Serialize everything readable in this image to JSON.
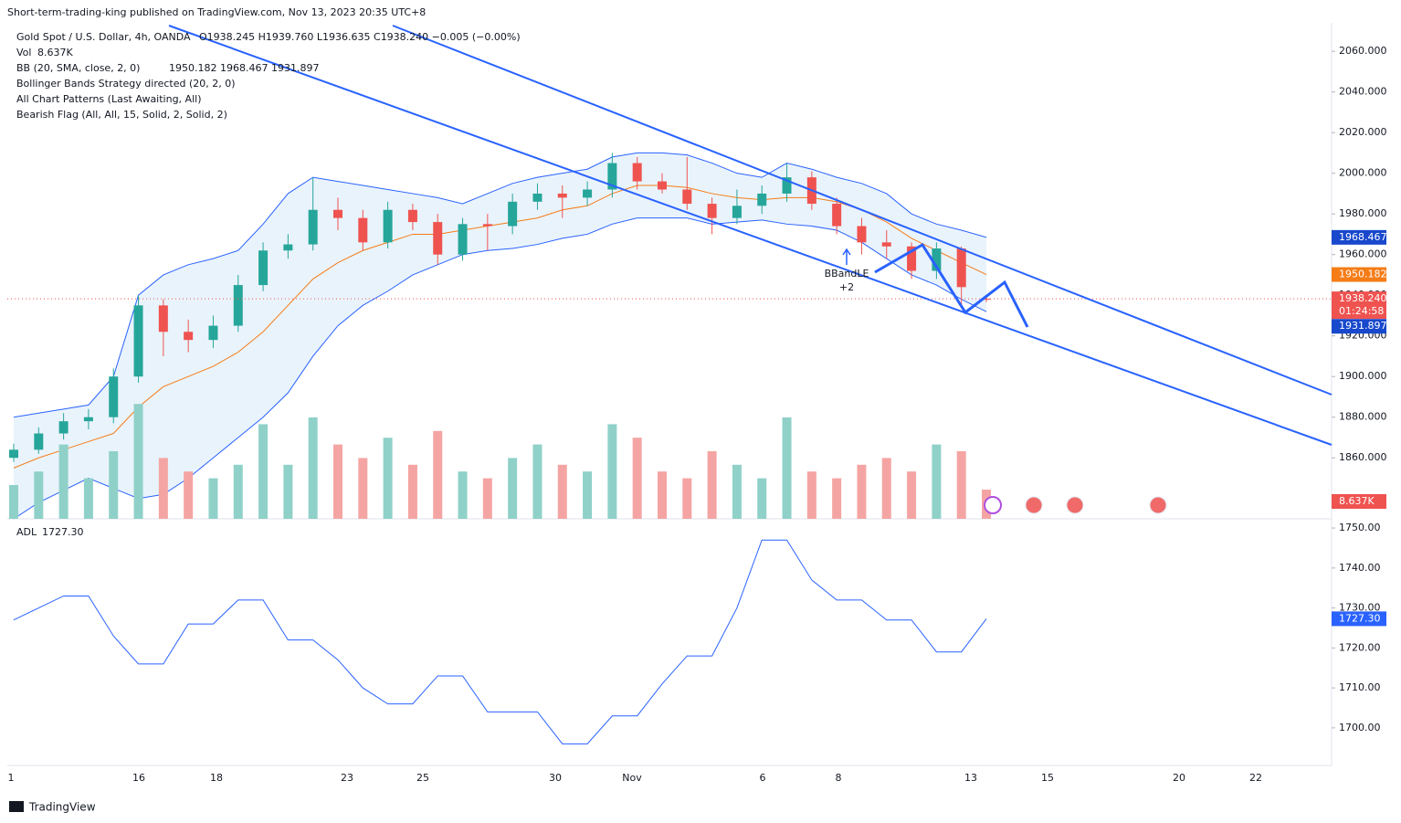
{
  "header": {
    "published": "Short-term-trading-king published on TradingView.com, Nov 13, 2023 20:35 UTC+8",
    "symbol": "Gold Spot / U.S. Dollar, 4h, OANDA",
    "ohlc": "O1938.245 H1939.760 L1936.635 C1938.240 −0.005 (−0.00%)",
    "indicators": [
      "Bollinger Bands Strategy directed (20, 2, 0)",
      "All Chart Patterns (Last Awaiting, All)",
      "Bearish Flag (All, All, 15, Solid, 2, Solid, 2)"
    ],
    "annotations": [
      "BBandLE",
      "+2"
    ],
    "footer": "TradingView"
  },
  "chart_data": [
    {
      "type": "candlestick",
      "open": [
        1860,
        1864,
        1872,
        1878,
        1880,
        1900,
        1935,
        1922,
        1918,
        1925,
        1945,
        1962,
        1965,
        1982,
        1978,
        1966,
        1982,
        1976,
        1960,
        1975,
        1974,
        1986,
        1990,
        1988,
        1992,
        2005,
        1996,
        1992,
        1985,
        1978,
        1984,
        1990,
        1998,
        1985,
        1974,
        1966,
        1964,
        1952,
        1963,
        1938.245
      ],
      "high": [
        1867,
        1875,
        1882,
        1884,
        1904,
        1940,
        1938,
        1928,
        1930,
        1950,
        1966,
        1970,
        1998,
        1988,
        1982,
        1986,
        1985,
        1980,
        1978,
        1980,
        1990,
        1995,
        1994,
        1996,
        2010,
        2008,
        2000,
        2008,
        1988,
        1992,
        1994,
        2005,
        2001,
        1988,
        1978,
        1972,
        1966,
        1966,
        1964,
        1939.76
      ],
      "low": [
        1858,
        1862,
        1869,
        1874,
        1877,
        1897,
        1910,
        1912,
        1914,
        1922,
        1942,
        1958,
        1962,
        1972,
        1962,
        1963,
        1972,
        1955,
        1957,
        1962,
        1970,
        1982,
        1978,
        1984,
        1988,
        1992,
        1990,
        1982,
        1970,
        1975,
        1980,
        1986,
        1982,
        1970,
        1960,
        1958,
        1948,
        1948,
        1935,
        1936.635
      ],
      "close": [
        1864,
        1872,
        1878,
        1880,
        1900,
        1935,
        1922,
        1918,
        1925,
        1945,
        1962,
        1965,
        1982,
        1978,
        1966,
        1982,
        1976,
        1960,
        1975,
        1974,
        1986,
        1990,
        1988,
        1992,
        2005,
        1996,
        1992,
        1985,
        1978,
        1984,
        1990,
        1998,
        1985,
        1974,
        1966,
        1964,
        1952,
        1963,
        1944,
        1938.24
      ],
      "last_price_label": "1938.240",
      "countdown": "01:24:58",
      "up_color": "#26a69a",
      "down_color": "#ef5350",
      "ylim": [
        1830,
        2074
      ],
      "yticks": [
        {
          "value": 1860,
          "label": "1860.000"
        },
        {
          "value": 1880,
          "label": "1880.000"
        },
        {
          "value": 1900,
          "label": "1900.000"
        },
        {
          "value": 1920,
          "label": "1920.000"
        },
        {
          "value": 1940,
          "label": "1940.000"
        },
        {
          "value": 1960,
          "label": "1960.000"
        },
        {
          "value": 1980,
          "label": "1980.000"
        },
        {
          "value": 2000,
          "label": "2000.000"
        },
        {
          "value": 2020,
          "label": "2020.000"
        },
        {
          "value": 2040,
          "label": "2040.000"
        },
        {
          "value": 2060,
          "label": "2060.000"
        }
      ],
      "bands": {
        "name": "BB (20, SMA, close, 2, 0)",
        "basis_color": "#f57c17",
        "band_color": "#2962ff",
        "fill": "#e3f0fb",
        "basis": [
          1855,
          1860,
          1864,
          1868,
          1872,
          1885,
          1895,
          1900,
          1905,
          1912,
          1922,
          1935,
          1948,
          1956,
          1962,
          1966,
          1970,
          1970,
          1972,
          1974,
          1976,
          1978,
          1982,
          1984,
          1990,
          1994,
          1994,
          1993,
          1990,
          1988,
          1987,
          1988,
          1988,
          1986,
          1982,
          1976,
          1968,
          1962,
          1956,
          1950.182
        ],
        "upper": [
          1880,
          1882,
          1884,
          1886,
          1900,
          1940,
          1950,
          1955,
          1958,
          1962,
          1975,
          1990,
          1998,
          1996,
          1994,
          1992,
          1990,
          1988,
          1985,
          1990,
          1995,
          1998,
          2000,
          2002,
          2008,
          2010,
          2010,
          2009,
          2005,
          2000,
          1998,
          2005,
          2002,
          1998,
          1995,
          1990,
          1980,
          1975,
          1972,
          1968.467
        ],
        "lower": [
          1830,
          1838,
          1844,
          1850,
          1845,
          1840,
          1842,
          1850,
          1860,
          1870,
          1880,
          1892,
          1910,
          1925,
          1935,
          1942,
          1950,
          1955,
          1960,
          1962,
          1963,
          1965,
          1968,
          1970,
          1975,
          1978,
          1978,
          1978,
          1975,
          1976,
          1977,
          1975,
          1974,
          1972,
          1966,
          1958,
          1950,
          1945,
          1938,
          1931.897
        ]
      }
    },
    {
      "type": "bar",
      "name": "Vol",
      "values": [
        10,
        14,
        22,
        12,
        20,
        34,
        18,
        14,
        12,
        16,
        28,
        16,
        30,
        22,
        18,
        24,
        16,
        26,
        14,
        12,
        18,
        22,
        16,
        14,
        28,
        24,
        14,
        12,
        20,
        16,
        12,
        30,
        14,
        12,
        16,
        18,
        14,
        22,
        20,
        8.637
      ],
      "last_value_label": "8.637K",
      "ylim": [
        0,
        40
      ],
      "up_color": "#8fd1c9",
      "down_color": "#f4a5a3"
    },
    {
      "type": "line",
      "name": "ADL",
      "values": [
        1727,
        1730,
        1733,
        1733,
        1723,
        1716,
        1716,
        1726,
        1726,
        1732,
        1732,
        1722,
        1722,
        1717,
        1710,
        1706,
        1706,
        1713,
        1713,
        1704,
        1704,
        1704,
        1696,
        1696,
        1703,
        1703,
        1711,
        1718,
        1718,
        1730,
        1747,
        1747,
        1737,
        1732,
        1732,
        1727,
        1727,
        1719,
        1719,
        1727.3
      ],
      "last_value_label": "1727.30",
      "color": "#2962ff",
      "ylim": [
        1690.6,
        1752.3
      ],
      "yticks": [
        {
          "value": 1700,
          "label": "1700.00"
        },
        {
          "value": 1710,
          "label": "1710.00"
        },
        {
          "value": 1720,
          "label": "1720.00"
        },
        {
          "value": 1730,
          "label": "1730.00"
        },
        {
          "value": 1740,
          "label": "1740.00"
        },
        {
          "value": 1750,
          "label": "1750.00"
        }
      ],
      "x_labels": [
        "1",
        "16",
        "18",
        "23",
        "25",
        "30",
        "Nov",
        "6",
        "8",
        "13",
        "15",
        "20",
        "22"
      ]
    }
  ]
}
